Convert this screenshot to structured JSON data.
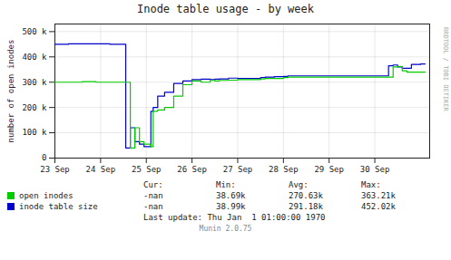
{
  "chart_data": {
    "type": "line",
    "title": "Inode table usage - by week",
    "ylabel": "number of open inodes",
    "line_style": "steps",
    "grid": true,
    "xlim": [
      0,
      8.2
    ],
    "xticks": [
      {
        "value": 0,
        "label": "23 Sep"
      },
      {
        "value": 1,
        "label": "24 Sep"
      },
      {
        "value": 2,
        "label": "25 Sep"
      },
      {
        "value": 3,
        "label": "26 Sep"
      },
      {
        "value": 4,
        "label": "27 Sep"
      },
      {
        "value": 5,
        "label": "28 Sep"
      },
      {
        "value": 6,
        "label": "29 Sep"
      },
      {
        "value": 7,
        "label": "30 Sep"
      }
    ],
    "ylim": [
      0,
      530000
    ],
    "yticks": [
      0,
      {
        "value": 100000,
        "label": "100 k"
      },
      {
        "value": 200000,
        "label": "200 k"
      },
      {
        "value": 300000,
        "label": "300 k"
      },
      {
        "value": 400000,
        "label": "400 k"
      },
      {
        "value": 500000,
        "label": "500 k"
      }
    ],
    "series": [
      {
        "name": "open inodes",
        "color": "#00cc00",
        "x": [
          0.0,
          0.3,
          0.6,
          0.9,
          1.2,
          1.45,
          1.5,
          1.55,
          1.65,
          1.75,
          1.85,
          1.95,
          2.05,
          2.1,
          2.15,
          2.25,
          2.4,
          2.6,
          2.8,
          3.0,
          3.2,
          3.4,
          3.5,
          3.6,
          3.8,
          4.0,
          4.2,
          4.4,
          4.5,
          4.6,
          4.8,
          5.0,
          5.1,
          5.2,
          5.4,
          5.6,
          5.8,
          6.0,
          6.2,
          6.4,
          6.5,
          6.6,
          6.7,
          6.8,
          7.0,
          7.1,
          7.2,
          7.3,
          7.4,
          7.5,
          7.6,
          7.7,
          7.8,
          7.9,
          8.0,
          8.1
        ],
        "values": [
          300000,
          300000,
          302000,
          300000,
          300000,
          300000,
          300000,
          300000,
          40000,
          120000,
          65000,
          55000,
          55000,
          45000,
          185000,
          190000,
          200000,
          245000,
          290000,
          305000,
          300000,
          307000,
          305000,
          307000,
          308000,
          310000,
          310000,
          310000,
          313000,
          315000,
          315000,
          318000,
          320000,
          320000,
          320000,
          320000,
          320000,
          320000,
          320000,
          320000,
          320000,
          320000,
          320000,
          320000,
          320000,
          320000,
          320000,
          320000,
          360000,
          362000,
          345000,
          340000,
          340000,
          340000,
          340000,
          340000
        ],
        "stats": [
          "-nan",
          "38.69k",
          "270.63k",
          "363.21k"
        ]
      },
      {
        "name": "inode table size",
        "color": "#0000cc",
        "x": [
          0.0,
          0.3,
          0.6,
          0.9,
          1.2,
          1.45,
          1.5,
          1.51,
          1.55,
          1.65,
          1.75,
          1.85,
          1.95,
          2.05,
          2.1,
          2.15,
          2.25,
          2.4,
          2.6,
          2.8,
          3.0,
          3.2,
          3.4,
          3.5,
          3.6,
          3.8,
          4.0,
          4.2,
          4.4,
          4.5,
          4.6,
          4.8,
          5.0,
          5.1,
          5.2,
          5.4,
          5.6,
          5.8,
          6.0,
          6.2,
          6.4,
          6.5,
          6.6,
          6.7,
          6.8,
          7.0,
          7.1,
          7.2,
          7.3,
          7.4,
          7.5,
          7.6,
          7.7,
          7.8,
          7.9,
          8.0,
          8.1
        ],
        "values": [
          450000,
          452000,
          452000,
          452000,
          450000,
          450000,
          450000,
          450000,
          40000,
          120000,
          65000,
          55000,
          45000,
          45000,
          185000,
          200000,
          245000,
          260000,
          295000,
          305000,
          310000,
          312000,
          310000,
          312000,
          313000,
          316000,
          315000,
          315000,
          315000,
          318000,
          320000,
          322000,
          323000,
          325000,
          325000,
          325000,
          325000,
          325000,
          325000,
          325000,
          325000,
          325000,
          325000,
          325000,
          325000,
          325000,
          325000,
          325000,
          365000,
          368000,
          360000,
          355000,
          355000,
          370000,
          370000,
          372000,
          372000
        ],
        "stats": [
          "-nan",
          "38.99k",
          "291.18k",
          "452.02k"
        ]
      }
    ],
    "stats_headers": [
      "Cur:",
      "Min:",
      "Avg:",
      "Max:"
    ],
    "last_update": "Last update: Thu Jan  1 01:00:00 1970",
    "watermark": "RRDTOOL / TOBI OETIKER",
    "footer": "Munin 2.0.75"
  }
}
